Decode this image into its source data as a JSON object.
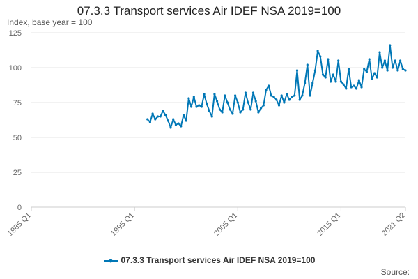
{
  "title": "07.3.3 Transport services Air IDEF NSA 2019=100",
  "subtitle": "Index, base year = 100",
  "source_label": "Source:",
  "colors": {
    "series": "#0077b6",
    "grid": "#e6e6e6",
    "axis": "#cccccc",
    "text": "#666666"
  },
  "chart_data": {
    "type": "line",
    "title": "07.3.3 Transport services Air IDEF NSA 2019=100",
    "xlabel": "",
    "ylabel": "Index, base year = 100",
    "ylim": [
      0,
      125
    ],
    "yticks": [
      0,
      25,
      50,
      75,
      100,
      125
    ],
    "xlim": [
      "1985 Q1",
      "2021 Q2"
    ],
    "xticks": [
      "1985 Q1",
      "1995 Q1",
      "2005 Q1",
      "2015 Q1",
      "2021 Q2"
    ],
    "grid": true,
    "legend_position": "bottom",
    "series": [
      {
        "name": "07.3.3 Transport services Air IDEF NSA 2019=100",
        "x": [
          "1996 Q2",
          "1996 Q3",
          "1996 Q4",
          "1997 Q1",
          "1997 Q2",
          "1997 Q3",
          "1997 Q4",
          "1998 Q1",
          "1998 Q2",
          "1998 Q3",
          "1998 Q4",
          "1999 Q1",
          "1999 Q2",
          "1999 Q3",
          "1999 Q4",
          "2000 Q1",
          "2000 Q2",
          "2000 Q3",
          "2000 Q4",
          "2001 Q1",
          "2001 Q2",
          "2001 Q3",
          "2001 Q4",
          "2002 Q1",
          "2002 Q2",
          "2002 Q3",
          "2002 Q4",
          "2003 Q1",
          "2003 Q2",
          "2003 Q3",
          "2003 Q4",
          "2004 Q1",
          "2004 Q2",
          "2004 Q3",
          "2004 Q4",
          "2005 Q1",
          "2005 Q2",
          "2005 Q3",
          "2005 Q4",
          "2006 Q1",
          "2006 Q2",
          "2006 Q3",
          "2006 Q4",
          "2007 Q1",
          "2007 Q2",
          "2007 Q3",
          "2007 Q4",
          "2008 Q1",
          "2008 Q2",
          "2008 Q3",
          "2008 Q4",
          "2009 Q1",
          "2009 Q2",
          "2009 Q3",
          "2009 Q4",
          "2010 Q1",
          "2010 Q2",
          "2010 Q3",
          "2010 Q4",
          "2011 Q1",
          "2011 Q2",
          "2011 Q3",
          "2011 Q4",
          "2012 Q1",
          "2012 Q2",
          "2012 Q3",
          "2012 Q4",
          "2013 Q1",
          "2013 Q2",
          "2013 Q3",
          "2013 Q4",
          "2014 Q1",
          "2014 Q2",
          "2014 Q3",
          "2014 Q4",
          "2015 Q1",
          "2015 Q2",
          "2015 Q3",
          "2015 Q4",
          "2016 Q1",
          "2016 Q2",
          "2016 Q3",
          "2016 Q4",
          "2017 Q1",
          "2017 Q2",
          "2017 Q3",
          "2017 Q4",
          "2018 Q1",
          "2018 Q2",
          "2018 Q3",
          "2018 Q4",
          "2019 Q1",
          "2019 Q2",
          "2019 Q3",
          "2019 Q4",
          "2020 Q1",
          "2020 Q2",
          "2020 Q3",
          "2020 Q4",
          "2021 Q1",
          "2021 Q2"
        ],
        "values": [
          63,
          61,
          67,
          63,
          65,
          65,
          69,
          66,
          62,
          57,
          63,
          59,
          60,
          58,
          66,
          62,
          78,
          72,
          79,
          72,
          73,
          72,
          81,
          74,
          69,
          65,
          81,
          76,
          70,
          68,
          80,
          75,
          70,
          67,
          80,
          75,
          68,
          70,
          82,
          75,
          70,
          82,
          76,
          68,
          71,
          73,
          84,
          87,
          80,
          79,
          77,
          73,
          80,
          75,
          81,
          77,
          79,
          80,
          98,
          77,
          80,
          89,
          102,
          80,
          89,
          98,
          112,
          108,
          95,
          93,
          106,
          90,
          95,
          90,
          105,
          90,
          88,
          85,
          99,
          86,
          87,
          85,
          91,
          86,
          99,
          97,
          106,
          92,
          96,
          93,
          111,
          100,
          105,
          98,
          116,
          100,
          105,
          98,
          105,
          99,
          98
        ]
      }
    ]
  }
}
